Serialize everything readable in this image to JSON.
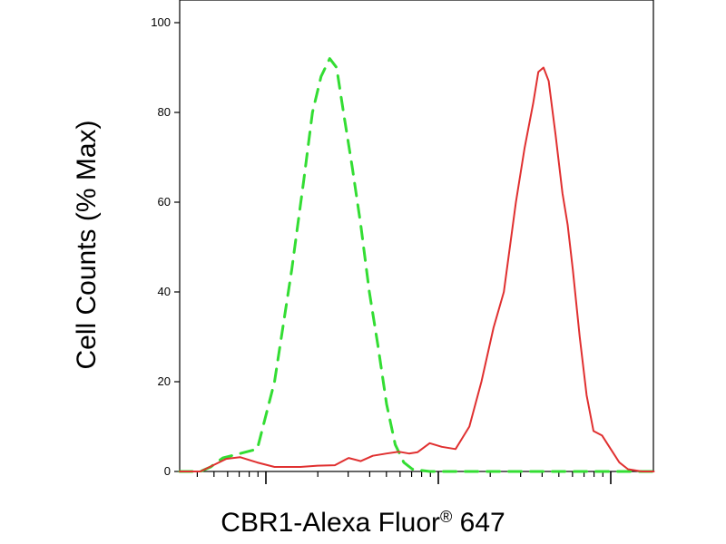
{
  "chart_data": {
    "type": "line",
    "title": "",
    "xlabel": "CBR1-Alexa Fluor",
    "xlabel_mark": "®",
    "xlabel_suffix": "647",
    "ylabel": "Cell Counts (% Max)",
    "x_scale": "log",
    "x_axis": {
      "decades": 3,
      "minor_ticks": true,
      "tick_labels": []
    },
    "ylim": [
      0,
      100
    ],
    "yticks": [
      "0",
      "20",
      "40",
      "60",
      "80",
      "100"
    ],
    "grid": false,
    "series": [
      {
        "style": "dashed",
        "color": "#33dd33",
        "points": [
          [
            0,
            0
          ],
          [
            0.12,
            0
          ],
          [
            0.18,
            1
          ],
          [
            0.25,
            3
          ],
          [
            0.3,
            3.5
          ],
          [
            0.35,
            4
          ],
          [
            0.45,
            5
          ],
          [
            0.55,
            20
          ],
          [
            0.65,
            45
          ],
          [
            0.72,
            65
          ],
          [
            0.77,
            80
          ],
          [
            0.82,
            88
          ],
          [
            0.87,
            92
          ],
          [
            0.91,
            90
          ],
          [
            0.95,
            80
          ],
          [
            1.0,
            68
          ],
          [
            1.05,
            55
          ],
          [
            1.1,
            40
          ],
          [
            1.15,
            28
          ],
          [
            1.2,
            15
          ],
          [
            1.25,
            6
          ],
          [
            1.3,
            2
          ],
          [
            1.35,
            0.5
          ],
          [
            1.45,
            0
          ],
          [
            2.75,
            0
          ]
        ]
      },
      {
        "style": "solid",
        "color": "#e03030",
        "points": [
          [
            0,
            0
          ],
          [
            0.12,
            0
          ],
          [
            0.2,
            1.5
          ],
          [
            0.27,
            2.8
          ],
          [
            0.35,
            3.2
          ],
          [
            0.45,
            2
          ],
          [
            0.55,
            1
          ],
          [
            0.7,
            1
          ],
          [
            0.8,
            1.3
          ],
          [
            0.9,
            1.4
          ],
          [
            0.98,
            3
          ],
          [
            1.05,
            2.3
          ],
          [
            1.12,
            3.5
          ],
          [
            1.2,
            4
          ],
          [
            1.27,
            4.4
          ],
          [
            1.33,
            4
          ],
          [
            1.38,
            4.3
          ],
          [
            1.45,
            6.3
          ],
          [
            1.52,
            5.5
          ],
          [
            1.6,
            5
          ],
          [
            1.68,
            10
          ],
          [
            1.75,
            20
          ],
          [
            1.82,
            32
          ],
          [
            1.88,
            40
          ],
          [
            1.95,
            60
          ],
          [
            2.0,
            72
          ],
          [
            2.05,
            82
          ],
          [
            2.08,
            89
          ],
          [
            2.11,
            90
          ],
          [
            2.14,
            87
          ],
          [
            2.18,
            75
          ],
          [
            2.22,
            62
          ],
          [
            2.25,
            55
          ],
          [
            2.28,
            45
          ],
          [
            2.32,
            30
          ],
          [
            2.36,
            17
          ],
          [
            2.4,
            9
          ],
          [
            2.45,
            8
          ],
          [
            2.5,
            5
          ],
          [
            2.55,
            2
          ],
          [
            2.6,
            0.5
          ],
          [
            2.68,
            0
          ],
          [
            2.75,
            0
          ]
        ]
      }
    ]
  }
}
